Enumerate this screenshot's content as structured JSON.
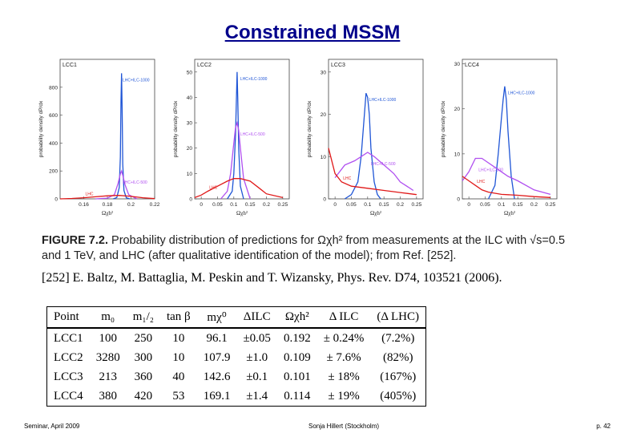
{
  "slide": {
    "title": "Constrained MSSM",
    "caption_label": "FIGURE 7.2.",
    "caption_text": "Probability distribution of predictions for Ωχh² from measurements at the ILC with √s=0.5 and 1 TeV, and LHC (after qualitative identification of the model); from Ref. [252].",
    "reference": "[252]  E. Baltz, M. Battaglia, M. Peskin and T. Wizansky, Phys. Rev. D74, 103521 (2006).",
    "footer_left": "Seminar, April 2009",
    "footer_center": "Sonja Hillert (Stockholm)",
    "footer_right": "p. 42"
  },
  "table": {
    "headers": [
      "Point",
      "m₀",
      "m₁/₂",
      "tan β",
      "mχ⁰",
      "ΔILC",
      "Ωχh²",
      "Δ ILC",
      "(Δ LHC)"
    ],
    "rows": [
      [
        "LCC1",
        "100",
        "250",
        "10",
        "96.1",
        "±0.05",
        "0.192",
        "± 0.24%",
        "(7.2%)"
      ],
      [
        "LCC2",
        "3280",
        "300",
        "10",
        "107.9",
        "±1.0",
        "0.109",
        "± 7.6%",
        "(82%)"
      ],
      [
        "LCC3",
        "213",
        "360",
        "40",
        "142.6",
        "±0.1",
        "0.101",
        "± 18%",
        "(167%)"
      ],
      [
        "LCC4",
        "380",
        "420",
        "53",
        "169.1",
        "±1.4",
        "0.114",
        "± 19%",
        "(405%)"
      ]
    ]
  },
  "chart_data": [
    {
      "type": "line",
      "title": "LCC1",
      "xlabel": "Ωχh²",
      "ylabel": "probability density dP/dx",
      "xlim": [
        0.14,
        0.22
      ],
      "ylim": [
        0,
        1000
      ],
      "xticks": [
        "0.16",
        "0.18",
        "0.2",
        "0.22"
      ],
      "yticks": [
        "0",
        "200",
        "400",
        "600",
        "800"
      ],
      "series": [
        {
          "name": "LHC+ILC-1000",
          "color": "#1f55d6",
          "x": [
            0.185,
            0.188,
            0.19,
            0.191,
            0.1915,
            0.192,
            0.1925,
            0.193,
            0.194,
            0.196,
            0.199
          ],
          "y": [
            0,
            10,
            80,
            300,
            700,
            900,
            650,
            250,
            60,
            8,
            0
          ]
        },
        {
          "name": "LHC+ILC-500",
          "color": "#b04ff0",
          "x": [
            0.17,
            0.18,
            0.186,
            0.189,
            0.191,
            0.192,
            0.193,
            0.195,
            0.198,
            0.205
          ],
          "y": [
            0,
            5,
            30,
            110,
            180,
            200,
            170,
            100,
            30,
            0
          ]
        },
        {
          "name": "LHC",
          "color": "#e01818",
          "x": [
            0.14,
            0.15,
            0.16,
            0.17,
            0.18,
            0.19,
            0.2,
            0.21,
            0.22
          ],
          "y": [
            0,
            3,
            8,
            15,
            22,
            25,
            18,
            8,
            2
          ]
        }
      ]
    },
    {
      "type": "line",
      "title": "LCC2",
      "xlabel": "Ωχh²",
      "ylabel": "probability density dP/dx",
      "xlim": [
        -0.02,
        0.27
      ],
      "ylim": [
        0,
        55
      ],
      "xticks": [
        "0",
        "0.05",
        "0.1",
        "0.15",
        "0.2",
        "0.25"
      ],
      "yticks": [
        "0",
        "10",
        "20",
        "30",
        "40",
        "50"
      ],
      "series": [
        {
          "name": "LHC+ILC-1000",
          "color": "#1f55d6",
          "x": [
            0.08,
            0.095,
            0.1,
            0.105,
            0.108,
            0.11,
            0.112,
            0.115,
            0.12,
            0.13
          ],
          "y": [
            0,
            3,
            10,
            25,
            40,
            50,
            40,
            20,
            5,
            0
          ]
        },
        {
          "name": "LHC+ILC-500",
          "color": "#b04ff0",
          "x": [
            0.06,
            0.08,
            0.09,
            0.1,
            0.105,
            0.11,
            0.115,
            0.12,
            0.13,
            0.15
          ],
          "y": [
            0,
            3,
            10,
            22,
            28,
            30,
            27,
            20,
            8,
            0
          ]
        },
        {
          "name": "LHC",
          "color": "#e01818",
          "x": [
            -0.02,
            0,
            0.02,
            0.05,
            0.08,
            0.1,
            0.12,
            0.15,
            0.18,
            0.2,
            0.25
          ],
          "y": [
            0.5,
            1.5,
            3,
            5,
            7,
            8,
            8,
            7,
            4,
            2,
            0.5
          ]
        }
      ]
    },
    {
      "type": "line",
      "title": "LCC3",
      "xlabel": "Ωχh²",
      "ylabel": "probability density dP/dx",
      "xlim": [
        -0.02,
        0.27
      ],
      "ylim": [
        0,
        33
      ],
      "xticks": [
        "0",
        "0.05",
        "0.1",
        "0.15",
        "0.2",
        "0.25"
      ],
      "yticks": [
        "0",
        "10",
        "20",
        "30"
      ],
      "series": [
        {
          "name": "LHC+ILC-1000",
          "color": "#1f55d6",
          "x": [
            0.03,
            0.05,
            0.07,
            0.08,
            0.09,
            0.095,
            0.1,
            0.105,
            0.11,
            0.12,
            0.13,
            0.14
          ],
          "y": [
            0,
            1,
            4,
            10,
            20,
            25,
            24,
            20,
            12,
            4,
            1,
            0
          ]
        },
        {
          "name": "LHC+ILC-500",
          "color": "#b04ff0",
          "x": [
            0,
            0.03,
            0.06,
            0.08,
            0.1,
            0.12,
            0.15,
            0.18,
            0.2,
            0.22,
            0.24
          ],
          "y": [
            5,
            8,
            9,
            10,
            11,
            10,
            8,
            6,
            4,
            3,
            2
          ]
        },
        {
          "name": "LHC",
          "color": "#e01818",
          "x": [
            -0.02,
            0,
            0.02,
            0.05,
            0.1,
            0.15,
            0.2,
            0.25
          ],
          "y": [
            12,
            6,
            4,
            3,
            2.5,
            2,
            1.5,
            1
          ]
        }
      ]
    },
    {
      "type": "line",
      "title": "LCC4",
      "xlabel": "Ωχh²",
      "ylabel": "probability density dP/dx",
      "xlim": [
        -0.02,
        0.27
      ],
      "ylim": [
        0,
        31
      ],
      "xticks": [
        "0",
        "0.05",
        "0.1",
        "0.15",
        "0.2",
        "0.25"
      ],
      "yticks": [
        "0",
        "10",
        "20",
        "30"
      ],
      "series": [
        {
          "name": "LHC+ILC-1000",
          "color": "#1f55d6",
          "x": [
            0.06,
            0.08,
            0.09,
            0.1,
            0.105,
            0.11,
            0.115,
            0.12,
            0.13,
            0.14
          ],
          "y": [
            0,
            3,
            10,
            18,
            22,
            25,
            22,
            15,
            5,
            0
          ]
        },
        {
          "name": "LHC+ILC-500",
          "color": "#b04ff0",
          "x": [
            -0.02,
            0,
            0.02,
            0.04,
            0.06,
            0.08,
            0.1,
            0.12,
            0.15,
            0.2,
            0.25
          ],
          "y": [
            4,
            6,
            9,
            9,
            8,
            7,
            6,
            5,
            4,
            2,
            1
          ]
        },
        {
          "name": "LHC",
          "color": "#e01818",
          "x": [
            -0.02,
            0,
            0.02,
            0.04,
            0.06,
            0.1,
            0.15,
            0.2,
            0.25
          ],
          "y": [
            5,
            4,
            3,
            2,
            1.5,
            1,
            0.8,
            0.5,
            0.3
          ]
        }
      ]
    }
  ]
}
